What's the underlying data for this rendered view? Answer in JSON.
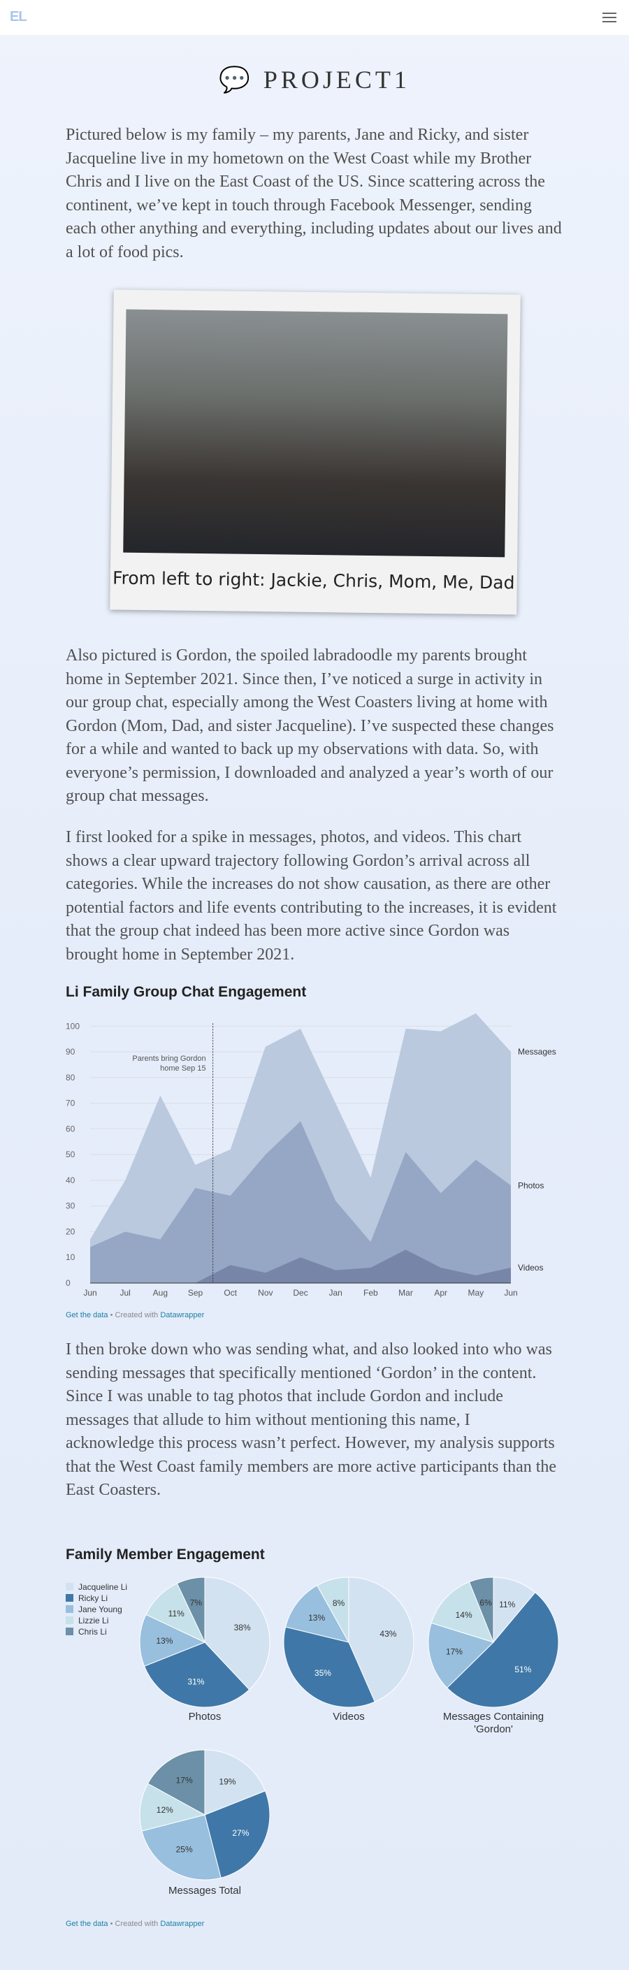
{
  "header": {
    "logo": "EL"
  },
  "title": "💬 PROJECT1",
  "paragraphs": [
    "Pictured below is my family – my parents, Jane and Ricky, and sister Jacqueline live in my hometown on the West Coast while my Brother Chris and I live on the East Coast of the US. Since scattering across the continent, we’ve kept in touch through Facebook Messenger, sending each other anything and everything, including updates about our lives and a lot of food pics.",
    "Also pictured is Gordon, the spoiled labradoodle my parents brought home in September 2021. Since then, I’ve noticed a surge in activity in our group chat, especially among the West Coasters living at home with Gordon (Mom, Dad, and sister Jacqueline). I’ve suspected these changes for a while and wanted to back up my observations with data. So, with everyone’s permission, I downloaded and analyzed a year’s worth of our group chat messages.",
    "I first looked for a spike in messages, photos, and videos. This chart shows a clear upward trajectory following Gordon’s arrival across all categories. While the increases do not show causation, as there are other potential factors and life events contributing to the increases, it is evident that the group chat indeed has been more active since Gordon was brought home in September 2021.",
    "I then broke down who was sending what, and also looked into who was sending messages that specifically mentioned ‘Gordon’ in the content. Since I was unable to tag photos that include Gordon and include messages that allude to him without mentioning this name, I acknowledge this process wasn’t perfect. However, my analysis supports that the West Coast family members are more active participants than the East Coasters."
  ],
  "photo": {
    "caption": "From left to right: Jackie, Chris, Mom, Me, Dad"
  },
  "chart_data": [
    {
      "type": "area",
      "title": "Li Family Group Chat Engagement",
      "categories": [
        "Jun",
        "Jul",
        "Aug",
        "Sep",
        "Oct",
        "Nov",
        "Dec",
        "Jan",
        "Feb",
        "Mar",
        "Apr",
        "May",
        "Jun"
      ],
      "series": [
        {
          "name": "Messages",
          "color": "#bac9dd",
          "values": [
            17,
            40,
            73,
            46,
            52,
            92,
            99,
            70,
            41,
            99,
            98,
            105,
            90
          ]
        },
        {
          "name": "Photos",
          "color": "#96a7c5",
          "values": [
            14,
            20,
            17,
            37,
            34,
            50,
            63,
            32,
            16,
            51,
            35,
            48,
            38
          ]
        },
        {
          "name": "Videos",
          "color": "#7786a8",
          "values": [
            0,
            0,
            0,
            0,
            7,
            4,
            10,
            5,
            6,
            13,
            6,
            3,
            6
          ]
        }
      ],
      "ylim": [
        0,
        105
      ],
      "yticks": [
        0,
        10,
        20,
        30,
        40,
        50,
        60,
        70,
        80,
        90,
        100
      ],
      "grid": true,
      "annotation": [
        "Parents bring Gordon",
        "home Sep 15"
      ],
      "source": {
        "link": "Get the data",
        "text": "• Created with",
        "credit": "Datawrapper"
      }
    },
    {
      "type": "pie",
      "title": "Family Member Engagement",
      "legend": [
        "Jacqueline Li",
        "Ricky Li",
        "Jane Young",
        "Lizzie Li",
        "Chris Li"
      ],
      "colors": [
        "#d3e2f1",
        "#3f78a8",
        "#98bfdd",
        "#c6e1ea",
        "#6b90a7"
      ],
      "pies": [
        {
          "name": "Photos",
          "values": [
            38,
            31,
            13,
            11,
            7
          ],
          "value_labels": [
            "38%",
            "31%",
            "13%",
            "11%",
            "7%"
          ]
        },
        {
          "name": "Videos",
          "values": [
            43,
            35,
            13,
            8,
            null
          ],
          "value_labels": [
            "43%",
            "35%",
            "13%",
            "8%",
            null
          ]
        },
        {
          "name": "Messages Containing 'Gordon'",
          "values": [
            11,
            51,
            17,
            14,
            6
          ],
          "value_labels": [
            "11%",
            "51%",
            "17%",
            "14%",
            "6%"
          ]
        },
        {
          "name": "Messages Total",
          "values": [
            19,
            27,
            25,
            12,
            17
          ],
          "value_labels": [
            "19%",
            "27%",
            "25%",
            "12%",
            "17%"
          ]
        }
      ],
      "source": {
        "link": "Get the data",
        "text": "• Created with",
        "credit": "Datawrapper"
      }
    }
  ]
}
